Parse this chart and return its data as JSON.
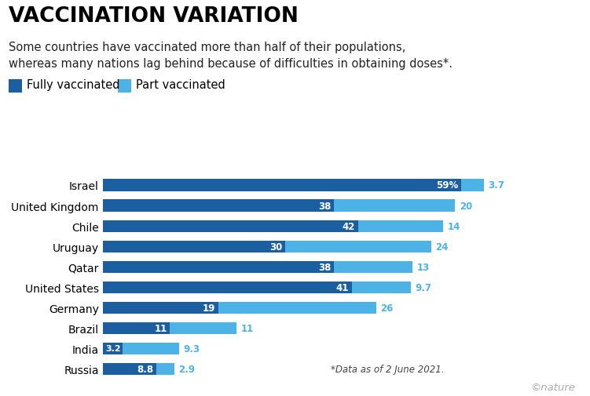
{
  "title": "VACCINATION VARIATION",
  "subtitle": "Some countries have vaccinated more than half of their populations,\nwhereas many nations lag behind because of difficulties in obtaining doses*.",
  "legend": [
    "Fully vaccinated",
    "Part vaccinated"
  ],
  "footnote": "*Data as of 2 June 2021.",
  "credit": "©nature",
  "countries": [
    "Israel",
    "United Kingdom",
    "Chile",
    "Uruguay",
    "Qatar",
    "United States",
    "Germany",
    "Brazil",
    "India",
    "Russia"
  ],
  "fully": [
    59,
    38,
    42,
    30,
    38,
    41,
    19,
    11,
    3.2,
    8.8
  ],
  "partly": [
    3.7,
    20,
    14,
    24,
    13,
    9.7,
    26,
    11,
    9.3,
    2.9
  ],
  "fully_labels": [
    "59%",
    "38",
    "42",
    "30",
    "38",
    "41",
    "19",
    "11",
    "3.2",
    "8.8"
  ],
  "partly_labels": [
    "3.7",
    "20",
    "14",
    "24",
    "13",
    "9.7",
    "26",
    "11",
    "9.3",
    "2.9"
  ],
  "color_fully": "#1c5fa0",
  "color_partly": "#4db3e6",
  "background": "#ffffff",
  "title_fontsize": 19,
  "subtitle_fontsize": 10.5,
  "legend_fontsize": 10.5,
  "bar_height": 0.58,
  "xlim": [
    0,
    70
  ]
}
